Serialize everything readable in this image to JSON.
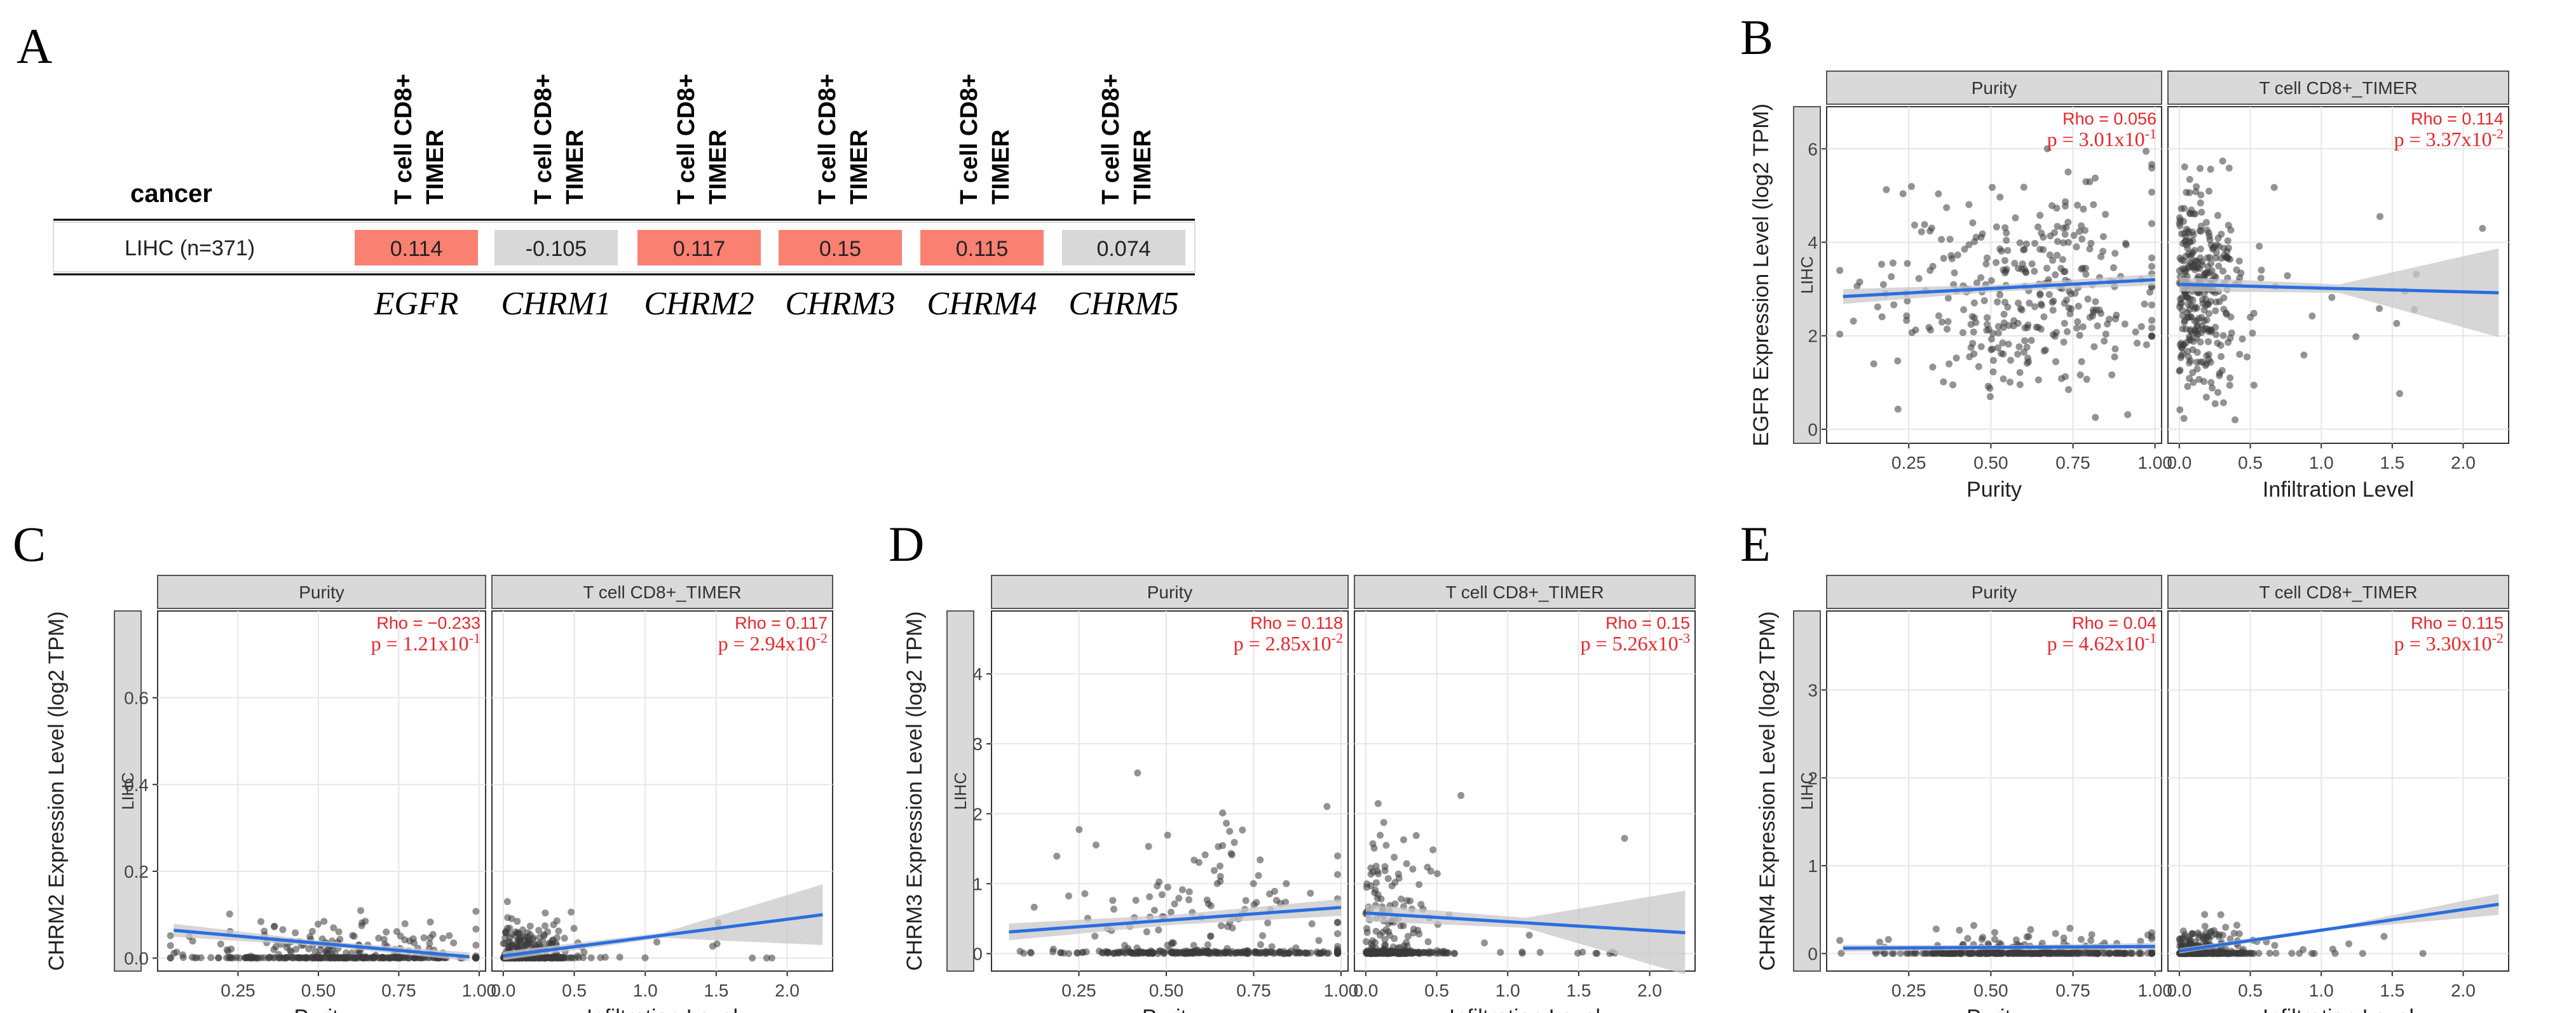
{
  "panel_labels": {
    "a": "A",
    "b": "B",
    "c": "C",
    "d": "D",
    "e": "E"
  },
  "table": {
    "header_cancer": "cancer",
    "column_header_line1": "T cell CD8+",
    "column_header_line2": "TIMER",
    "row_label": "LIHC (n=371)",
    "genes": [
      "EGFR",
      "CHRM1",
      "CHRM2",
      "CHRM3",
      "CHRM4",
      "CHRM5"
    ],
    "values": [
      "0.114",
      "-0.105",
      "0.117",
      "0.15",
      "0.115",
      "0.074"
    ],
    "significant": [
      true,
      false,
      true,
      true,
      true,
      false
    ],
    "colors": {
      "significant": "#fa8072",
      "nonsignificant": "#d8d8d8"
    }
  },
  "colors": {
    "fit_line": "#2a6ee0",
    "ribbon": "#c8c8c8",
    "stat_text": "#e8262b",
    "strip": "#d9d9d9",
    "point": "#3a3a3a"
  },
  "chart_data": [
    {
      "id": "B",
      "type": "scatter",
      "ylabel": "EGFR Expression Level (log2 TPM)",
      "row_strip": "LIHC",
      "ylim": [
        -0.3,
        6.9
      ],
      "yticks": [
        0,
        2,
        4,
        6
      ],
      "facets": [
        {
          "strip": "Purity",
          "xlabel": "Purity",
          "xlim": [
            0,
            1.02
          ],
          "xticks": [
            "0.25",
            "0.50",
            "0.75",
            "1.00"
          ],
          "xtick_values": [
            0.25,
            0.5,
            0.75,
            1.0
          ],
          "rho": "Rho = 0.056",
          "p": "p = 3.01x10",
          "p_exp": "-1",
          "fit": {
            "x": [
              0.05,
              1.0
            ],
            "y": [
              2.84,
              3.2
            ]
          },
          "ci": [
            0.16,
            0.12
          ],
          "points_mean": 3.0,
          "points_sd": 1.1
        },
        {
          "strip": "T cell CD8+_TIMER",
          "xlabel": "Infiltration Level",
          "xlim": [
            -0.08,
            2.32
          ],
          "xticks": [
            "0.0",
            "0.5",
            "1.0",
            "1.5",
            "2.0"
          ],
          "xtick_values": [
            0,
            0.5,
            1.0,
            1.5,
            2.0
          ],
          "rho": "Rho = 0.114",
          "p": "p = 3.37x10",
          "p_exp": "-2",
          "fit": {
            "x": [
              0.0,
              2.25
            ],
            "y": [
              3.1,
              2.92
            ]
          },
          "ci": [
            0.15,
            0.95
          ],
          "points_mean": 3.0,
          "points_sd": 1.1
        }
      ]
    },
    {
      "id": "C",
      "type": "scatter",
      "ylabel": "CHRM2 Expression Level (log2 TPM)",
      "row_strip": "LIHC",
      "ylim": [
        -0.03,
        0.8
      ],
      "yticks": [
        0.0,
        0.2,
        0.4,
        0.6
      ],
      "facets": [
        {
          "strip": "Purity",
          "xlabel": "Purity",
          "xlim": [
            0,
            1.02
          ],
          "xticks": [
            "0.25",
            "0.50",
            "0.75",
            "1.00"
          ],
          "xtick_values": [
            0.25,
            0.5,
            0.75,
            1.0
          ],
          "rho": "Rho = −0.233",
          "p": "p = 1.21x10",
          "p_exp": "-1",
          "fit": {
            "x": [
              0.05,
              0.97
            ],
            "y": [
              0.064,
              0.003
            ]
          },
          "ci": [
            0.015,
            0.01
          ],
          "points_mean": 0.02,
          "points_sd": 0.04
        },
        {
          "strip": "T cell CD8+_TIMER",
          "xlabel": "Infiltration Level",
          "xlim": [
            -0.08,
            2.32
          ],
          "xticks": [
            "0.0",
            "0.5",
            "1.0",
            "1.5",
            "2.0"
          ],
          "xtick_values": [
            0,
            0.5,
            1.0,
            1.5,
            2.0
          ],
          "rho": "Rho = 0.117",
          "p": "p = 2.94x10",
          "p_exp": "-2",
          "fit": {
            "x": [
              0.0,
              2.25
            ],
            "y": [
              0.005,
              0.1
            ]
          },
          "ci": [
            0.01,
            0.07
          ],
          "points_mean": 0.02,
          "points_sd": 0.04
        }
      ]
    },
    {
      "id": "D",
      "type": "scatter",
      "ylabel": "CHRM3 Expression Level (log2 TPM)",
      "row_strip": "LIHC",
      "ylim": [
        -0.25,
        4.9
      ],
      "yticks": [
        0,
        1,
        2,
        3,
        4
      ],
      "facets": [
        {
          "strip": "Purity",
          "xlabel": "Purity",
          "xlim": [
            0,
            1.02
          ],
          "xticks": [
            "0.25",
            "0.50",
            "0.75",
            "1.00"
          ],
          "xtick_values": [
            0.25,
            0.5,
            0.75,
            1.0
          ],
          "rho": "Rho = 0.118",
          "p": "p = 2.85x10",
          "p_exp": "-2",
          "fit": {
            "x": [
              0.05,
              1.0
            ],
            "y": [
              0.31,
              0.66
            ]
          },
          "ci": [
            0.12,
            0.12
          ],
          "points_mean": 0.5,
          "points_sd": 0.7
        },
        {
          "strip": "T cell CD8+_TIMER",
          "xlabel": "Infiltration Level",
          "xlim": [
            -0.08,
            2.32
          ],
          "xticks": [
            "0.0",
            "0.5",
            "1.0",
            "1.5",
            "2.0"
          ],
          "xtick_values": [
            0,
            0.5,
            1.0,
            1.5,
            2.0
          ],
          "rho": "Rho = 0.15",
          "p": "p = 5.26x10",
          "p_exp": "-3",
          "fit": {
            "x": [
              0.0,
              2.25
            ],
            "y": [
              0.58,
              0.3
            ]
          },
          "ci": [
            0.12,
            0.6
          ],
          "points_mean": 0.5,
          "points_sd": 0.7
        }
      ]
    },
    {
      "id": "E",
      "type": "scatter",
      "ylabel": "CHRM4 Expression Level (log2 TPM)",
      "row_strip": "LIHC",
      "ylim": [
        -0.2,
        3.9
      ],
      "yticks": [
        0,
        1,
        2,
        3
      ],
      "facets": [
        {
          "strip": "Purity",
          "xlabel": "Purity",
          "xlim": [
            0,
            1.02
          ],
          "xticks": [
            "0.25",
            "0.50",
            "0.75",
            "1.00"
          ],
          "xtick_values": [
            0.25,
            0.5,
            0.75,
            1.0
          ],
          "rho": "Rho = 0.04",
          "p": "p = 4.62x10",
          "p_exp": "-1",
          "fit": {
            "x": [
              0.05,
              1.0
            ],
            "y": [
              0.06,
              0.08
            ]
          },
          "ci": [
            0.04,
            0.04
          ],
          "points_mean": 0.05,
          "points_sd": 0.12
        },
        {
          "strip": "T cell CD8+_TIMER",
          "xlabel": "Infiltration Level",
          "xlim": [
            -0.08,
            2.32
          ],
          "xticks": [
            "0.0",
            "0.5",
            "1.0",
            "1.5",
            "2.0"
          ],
          "xtick_values": [
            0,
            0.5,
            1.0,
            1.5,
            2.0
          ],
          "rho": "Rho = 0.115",
          "p": "p = 3.30x10",
          "p_exp": "-2",
          "fit": {
            "x": [
              0.0,
              2.25
            ],
            "y": [
              0.03,
              0.56
            ]
          },
          "ci": [
            0.03,
            0.12
          ],
          "points_mean": 0.05,
          "points_sd": 0.12
        }
      ]
    }
  ]
}
